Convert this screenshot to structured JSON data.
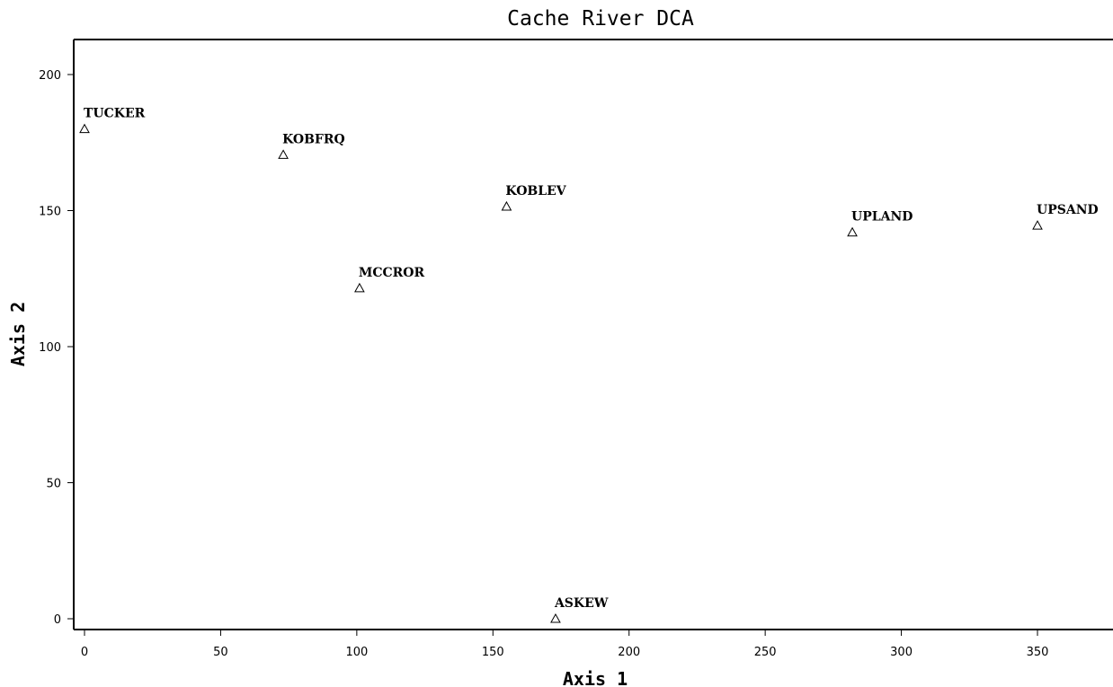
{
  "chart_data": {
    "type": "scatter",
    "title": "Cache River DCA",
    "xlabel": "Axis 1",
    "ylabel": "Axis 2",
    "xlim": [
      -4,
      377
    ],
    "ylim": [
      -4,
      213
    ],
    "xticks": [
      0,
      50,
      100,
      150,
      200,
      250,
      300,
      350
    ],
    "yticks": [
      0,
      50,
      100,
      150,
      200
    ],
    "grid": false,
    "marker": "open-triangle",
    "points": [
      {
        "label": "TUCKER",
        "x": 0,
        "y": 180
      },
      {
        "label": "KOBFRQ",
        "x": 73,
        "y": 170.5
      },
      {
        "label": "KOBLEV",
        "x": 155,
        "y": 151.5
      },
      {
        "label": "MCCROR",
        "x": 101,
        "y": 121.5
      },
      {
        "label": "UPLAND",
        "x": 282,
        "y": 142
      },
      {
        "label": "UPSAND",
        "x": 350,
        "y": 144.5
      },
      {
        "label": "ASKEW",
        "x": 173,
        "y": 0
      }
    ]
  }
}
